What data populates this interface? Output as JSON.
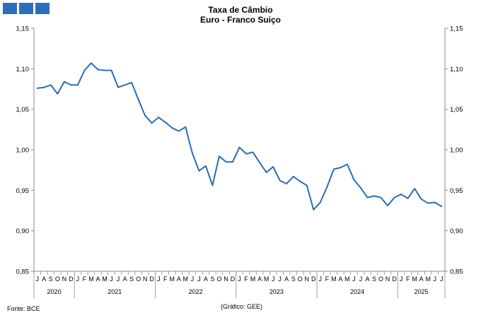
{
  "logo": {
    "icon": "three-blue-squares-logo",
    "color": "#2f6eb5"
  },
  "title_line1": "Taxa de Câmbio",
  "title_line2": "Euro - Franco Suiço",
  "source": "Fonte: BCE",
  "credit": "(Gráfico: GEE)",
  "chart_data": {
    "type": "line",
    "title": "Taxa de Câmbio\nEuro - Franco Suiço",
    "xlabel": "",
    "ylabel": "",
    "ylim": [
      0.85,
      1.15
    ],
    "yticks": [
      "0,85",
      "0,90",
      "0,95",
      "1,00",
      "1,05",
      "1,10",
      "1,15"
    ],
    "y_axes": [
      "left",
      "right"
    ],
    "grid": false,
    "color": "#2a6db0",
    "x": [
      "2020-07",
      "2020-08",
      "2020-09",
      "2020-10",
      "2020-11",
      "2020-12",
      "2021-01",
      "2021-02",
      "2021-03",
      "2021-04",
      "2021-05",
      "2021-06",
      "2021-07",
      "2021-08",
      "2021-09",
      "2021-10",
      "2021-11",
      "2021-12",
      "2022-01",
      "2022-02",
      "2022-03",
      "2022-04",
      "2022-05",
      "2022-06",
      "2022-07",
      "2022-08",
      "2022-09",
      "2022-10",
      "2022-11",
      "2022-12",
      "2023-01",
      "2023-02",
      "2023-03",
      "2023-04",
      "2023-05",
      "2023-06",
      "2023-07",
      "2023-08",
      "2023-09",
      "2023-10",
      "2023-11",
      "2023-12",
      "2024-01",
      "2024-02",
      "2024-03",
      "2024-04",
      "2024-05",
      "2024-06",
      "2024-07",
      "2024-08",
      "2024-09",
      "2024-10",
      "2024-11",
      "2024-12",
      "2025-01",
      "2025-02",
      "2025-03",
      "2025-04",
      "2025-05",
      "2025-06",
      "2025-07"
    ],
    "month_labels": [
      "J",
      "A",
      "S",
      "O",
      "N",
      "D",
      "J",
      "F",
      "M",
      "A",
      "M",
      "J",
      "J",
      "A",
      "S",
      "O",
      "N",
      "D",
      "J",
      "F",
      "M",
      "A",
      "M",
      "J",
      "J",
      "A",
      "S",
      "O",
      "N",
      "D",
      "J",
      "F",
      "M",
      "A",
      "M",
      "J",
      "J",
      "A",
      "S",
      "O",
      "N",
      "D",
      "J",
      "F",
      "M",
      "A",
      "M",
      "J",
      "J",
      "A",
      "S",
      "O",
      "N",
      "D",
      "J",
      "F",
      "M",
      "A",
      "M",
      "J",
      "J"
    ],
    "years": [
      {
        "label": "2020",
        "start": 0,
        "count": 6
      },
      {
        "label": "2021",
        "start": 6,
        "count": 12
      },
      {
        "label": "2022",
        "start": 18,
        "count": 12
      },
      {
        "label": "2023",
        "start": 30,
        "count": 12
      },
      {
        "label": "2024",
        "start": 42,
        "count": 12
      },
      {
        "label": "2025",
        "start": 54,
        "count": 7
      }
    ],
    "series": [
      {
        "values": [
          1.076,
          1.077,
          1.08,
          1.069,
          1.084,
          1.08,
          1.08,
          1.098,
          1.107,
          1.099,
          1.098,
          1.098,
          1.077,
          1.08,
          1.083,
          1.062,
          1.042,
          1.033,
          1.04,
          1.034,
          1.027,
          1.023,
          1.028,
          0.996,
          0.974,
          0.98,
          0.956,
          0.992,
          0.985,
          0.985,
          1.003,
          0.995,
          0.997,
          0.984,
          0.972,
          0.979,
          0.962,
          0.958,
          0.967,
          0.961,
          0.956,
          0.926,
          0.935,
          0.954,
          0.976,
          0.978,
          0.982,
          0.963,
          0.953,
          0.941,
          0.943,
          0.941,
          0.931,
          0.941,
          0.945,
          0.94,
          0.952,
          0.939,
          0.934,
          0.935,
          0.93
        ]
      }
    ]
  }
}
